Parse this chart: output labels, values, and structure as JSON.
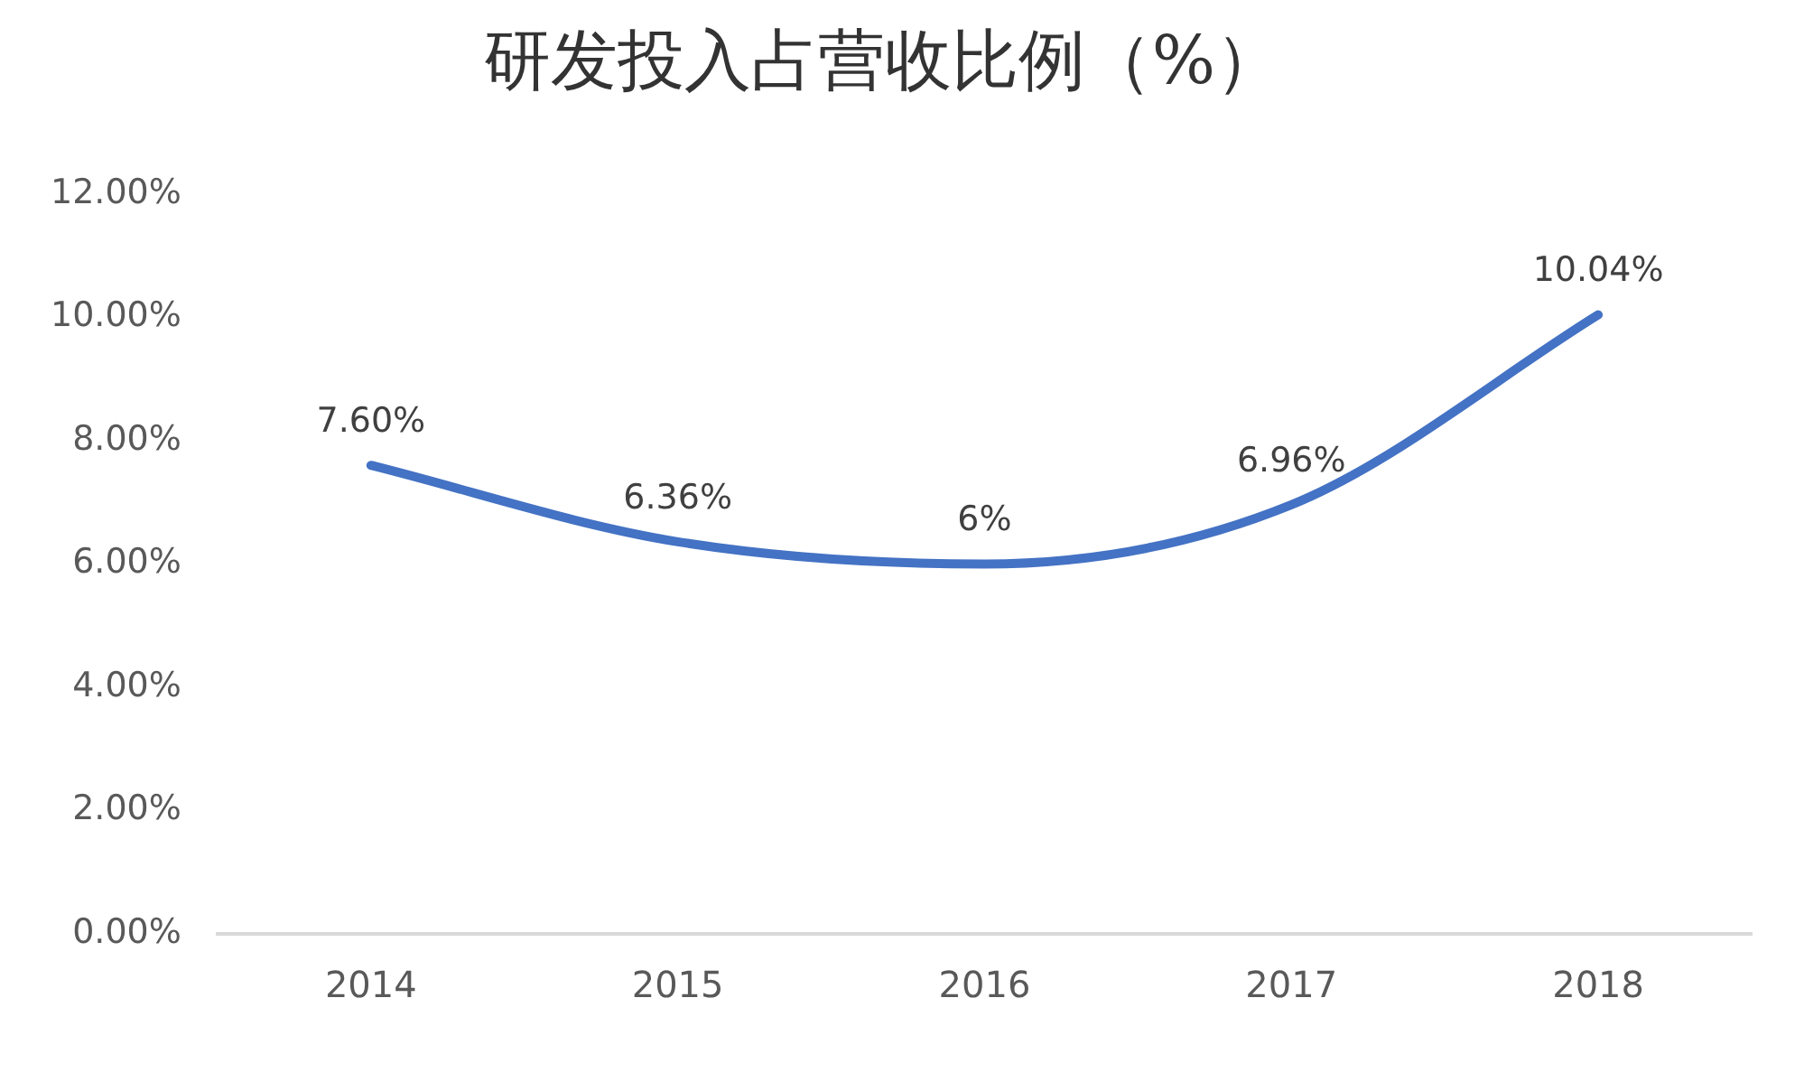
{
  "chart_data": {
    "type": "line",
    "title": "研发投入占营收比例（%）",
    "categories": [
      "2014",
      "2015",
      "2016",
      "2017",
      "2018"
    ],
    "series": [
      {
        "color": "#4472c4",
        "values": [
          7.6,
          6.36,
          6,
          6.96,
          10.04
        ],
        "value_labels": [
          "7.60%",
          "6.36%",
          "6%",
          "6.96%",
          "10.04%"
        ]
      }
    ],
    "ylim": [
      0,
      12
    ],
    "yticks": [
      {
        "value": 0,
        "label": "0.00%"
      },
      {
        "value": 2,
        "label": "2.00%"
      },
      {
        "value": 4,
        "label": "4.00%"
      },
      {
        "value": 6,
        "label": "6.00%"
      },
      {
        "value": 8,
        "label": "8.00%"
      },
      {
        "value": 10,
        "label": "10.00%"
      },
      {
        "value": 12,
        "label": "12.00%"
      }
    ],
    "marker": "none",
    "line_style": "solid"
  }
}
